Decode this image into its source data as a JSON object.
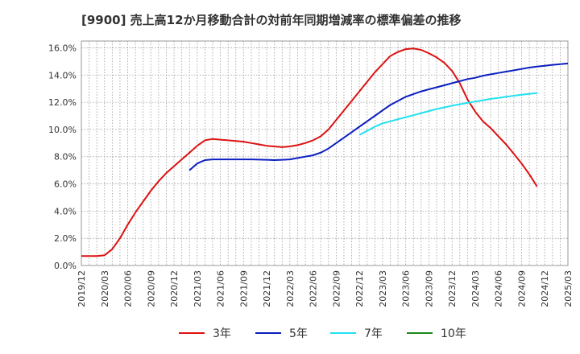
{
  "chart_data": {
    "type": "line",
    "title": "[9900]  売上高12か月移動合計の対前年同期増減率の標準偏差の推移",
    "xlabel": "",
    "ylabel": "",
    "x_ticks": [
      "2019/12",
      "2020/03",
      "2020/06",
      "2020/09",
      "2020/12",
      "2021/03",
      "2021/06",
      "2021/09",
      "2021/12",
      "2022/03",
      "2022/06",
      "2022/09",
      "2022/12",
      "2023/03",
      "2023/06",
      "2023/09",
      "2023/12",
      "2024/03",
      "2024/06",
      "2024/09",
      "2024/12",
      "2025/03"
    ],
    "y_ticks": [
      "0.0%",
      "2.0%",
      "4.0%",
      "6.0%",
      "8.0%",
      "10.0%",
      "12.0%",
      "14.0%",
      "16.0%"
    ],
    "ylim": [
      0,
      16.5
    ],
    "grid": true,
    "legend_position": "bottom",
    "series": [
      {
        "name": "3年",
        "color": "#dd1111",
        "start": "2019/12",
        "values": [
          0.7,
          0.7,
          0.7,
          0.75,
          1.2,
          2.0,
          3.0,
          3.9,
          4.7,
          5.5,
          6.2,
          6.8,
          7.3,
          7.8,
          8.3,
          8.8,
          9.2,
          9.3,
          9.25,
          9.2,
          9.15,
          9.1,
          9.0,
          8.9,
          8.8,
          8.75,
          8.7,
          8.75,
          8.85,
          9.0,
          9.2,
          9.5,
          10.0,
          10.7,
          11.4,
          12.1,
          12.8,
          13.5,
          14.2,
          14.8,
          15.4,
          15.7,
          15.9,
          15.95,
          15.85,
          15.6,
          15.3,
          14.9,
          14.3,
          13.4,
          12.2,
          11.3,
          10.6,
          10.1,
          9.5,
          8.9,
          8.2,
          7.5,
          6.7,
          5.8
        ]
      },
      {
        "name": "5年",
        "color": "#0b1fbf",
        "start": "2021/02",
        "values": [
          7.0,
          7.5,
          7.75,
          7.8,
          7.8,
          7.8,
          7.8,
          7.8,
          7.8,
          7.78,
          7.77,
          7.75,
          7.77,
          7.8,
          7.9,
          8.0,
          8.1,
          8.3,
          8.6,
          9.0,
          9.4,
          9.8,
          10.2,
          10.6,
          11.0,
          11.4,
          11.8,
          12.1,
          12.4,
          12.6,
          12.8,
          12.95,
          13.1,
          13.25,
          13.4,
          13.55,
          13.7,
          13.8,
          13.95,
          14.05,
          14.15,
          14.25,
          14.35,
          14.45,
          14.55,
          14.62,
          14.68,
          14.75,
          14.8,
          14.85
        ]
      },
      {
        "name": "7年",
        "color": "#22e0f0",
        "start": "2022/12",
        "values": [
          9.6,
          9.9,
          10.2,
          10.45,
          10.6,
          10.75,
          10.9,
          11.05,
          11.2,
          11.35,
          11.5,
          11.62,
          11.75,
          11.85,
          11.95,
          12.05,
          12.15,
          12.25,
          12.32,
          12.4,
          12.48,
          12.55,
          12.62,
          12.67
        ]
      },
      {
        "name": "10年",
        "color": "#1a8a1a",
        "start": "2024/12",
        "values": []
      }
    ]
  }
}
